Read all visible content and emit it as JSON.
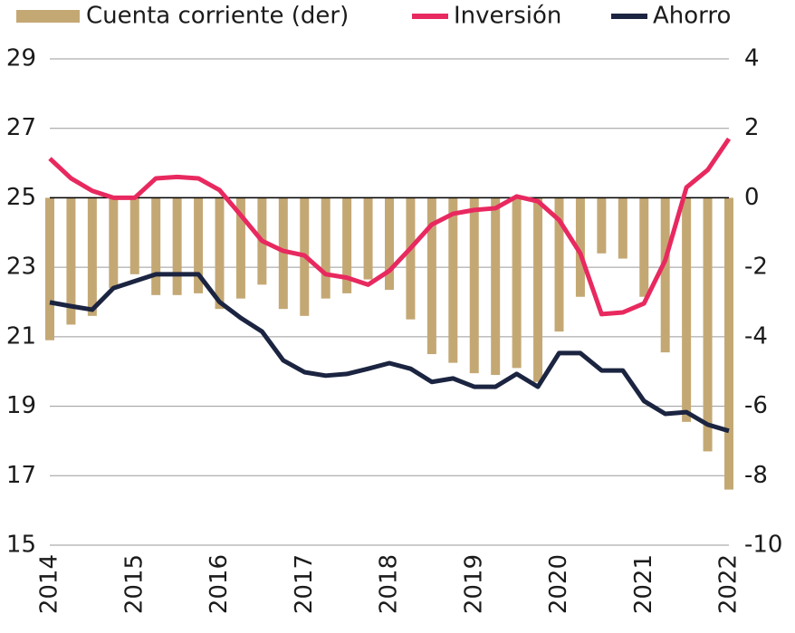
{
  "chart_data": {
    "type": "bar",
    "categories": [
      "2014",
      null,
      null,
      null,
      "2015",
      null,
      null,
      null,
      "2016",
      null,
      null,
      null,
      "2017",
      null,
      null,
      null,
      "2018",
      null,
      null,
      null,
      "2019",
      null,
      null,
      null,
      "2020",
      null,
      null,
      null,
      "2021",
      null,
      null,
      null,
      "2022"
    ],
    "series": [
      {
        "name": "Cuenta corriente (der)",
        "type": "bar",
        "axis": "y2",
        "color": "#c4a874",
        "values": [
          -4.1,
          -3.65,
          -3.4,
          -2.6,
          -2.2,
          -2.8,
          -2.8,
          -2.75,
          -3.2,
          -2.9,
          -2.5,
          -3.2,
          -3.4,
          -2.9,
          -2.75,
          -2.35,
          -2.65,
          -3.5,
          -4.5,
          -4.75,
          -5.05,
          -5.1,
          -4.9,
          -5.3,
          -3.85,
          -2.85,
          -1.6,
          -1.75,
          -2.85,
          -4.45,
          -6.45,
          -7.3,
          -8.4
        ]
      },
      {
        "name": "Inversión",
        "type": "line",
        "color": "#e8295f",
        "values": [
          26.13,
          25.56,
          25.2,
          25.0,
          25.0,
          25.56,
          25.6,
          25.56,
          25.22,
          24.5,
          23.76,
          23.47,
          23.34,
          22.8,
          22.7,
          22.5,
          22.9,
          23.55,
          24.23,
          24.54,
          24.65,
          24.7,
          25.04,
          24.9,
          24.36,
          23.4,
          21.65,
          21.7,
          21.96,
          23.2,
          25.3,
          25.8,
          26.7
        ]
      },
      {
        "name": "Ahorro",
        "type": "line",
        "color": "#1b2440",
        "values": [
          21.99,
          21.88,
          21.78,
          22.4,
          22.6,
          22.8,
          22.8,
          22.8,
          22.0,
          21.54,
          21.15,
          20.32,
          19.98,
          19.88,
          19.93,
          20.08,
          20.24,
          20.08,
          19.7,
          19.8,
          19.56,
          19.56,
          19.93,
          19.56,
          20.53,
          20.53,
          20.03,
          20.03,
          19.15,
          18.78,
          18.83,
          18.47,
          18.29
        ]
      }
    ],
    "ylim": [
      15,
      29
    ],
    "yticks": [
      15,
      17,
      19,
      21,
      23,
      25,
      27,
      29
    ],
    "y2lim": [
      -10,
      4
    ],
    "y2ticks": [
      -10,
      -8,
      -6,
      -4,
      -2,
      0,
      2,
      4
    ],
    "grid": true,
    "legend": "top"
  }
}
